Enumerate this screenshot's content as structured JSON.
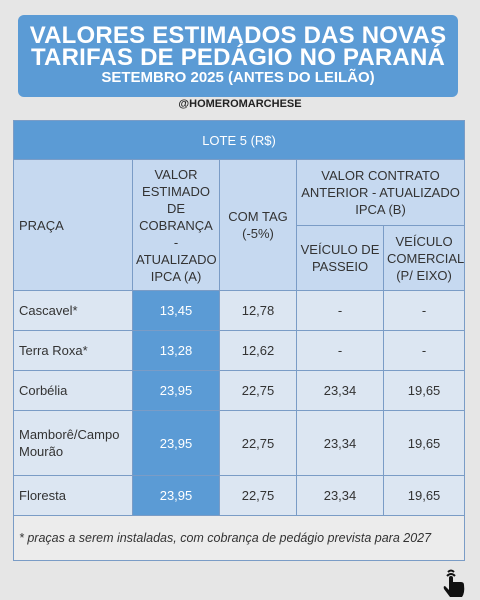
{
  "header": {
    "title_lines": [
      "VALORES ESTIMADOS DAS NOVAS",
      "TARIFAS DE PEDÁGIO NO PARANÁ"
    ],
    "subtitle": "SETEMBRO 2025 (ANTES DO LEILÃO)",
    "handle": "@HOMEROMARCHESE"
  },
  "table": {
    "caption": "LOTE 5 (R$)",
    "columns": {
      "praca": "PRAÇA",
      "estimado": "VALOR ESTIMADO DE COBRANÇA - ATUALIZADO IPCA (A)",
      "tag": "COM TAG (-5%)",
      "anterior": "VALOR CONTRATO ANTERIOR - ATUALIZADO IPCA (B)",
      "passeio": "VEÍCULO DE PASSEIO",
      "comercial": "VEÍCULO COMERCIAL (P/ EIXO)"
    },
    "rows": [
      [
        "Cascavel*",
        "13,45",
        "12,78",
        "-",
        "-"
      ],
      [
        "Terra Roxa*",
        "13,28",
        "12,62",
        "-",
        "-"
      ],
      [
        "Corbélia",
        "23,95",
        "22,75",
        "23,34",
        "19,65"
      ],
      [
        "Mamborê/Campo Mourão",
        "23,95",
        "22,75",
        "23,34",
        "19,65"
      ],
      [
        "Floresta",
        "23,95",
        "22,75",
        "23,34",
        "19,65"
      ]
    ],
    "footnote": "* praças a serem instaladas, com cobrança de pedágio prevista para 2027"
  }
}
